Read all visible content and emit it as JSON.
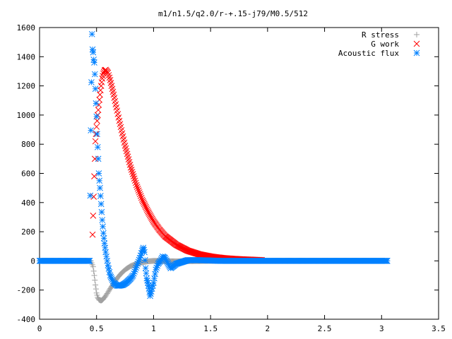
{
  "chart_data": {
    "type": "scatter",
    "title": "m1/n1.5/q2.0/r-+.15-j79/M0.5/512",
    "xlabel": "",
    "ylabel": "",
    "xlim": [
      0,
      3.5
    ],
    "ylim": [
      -400,
      1600
    ],
    "xticks": [
      0,
      0.5,
      1,
      1.5,
      2,
      2.5,
      3,
      3.5
    ],
    "xtick_labels": [
      "0",
      "0.5",
      "1",
      "1.5",
      "2",
      "2.5",
      "3",
      "3.5"
    ],
    "yticks": [
      -400,
      -200,
      0,
      200,
      400,
      600,
      800,
      1000,
      1200,
      1400,
      1600
    ],
    "ytick_labels": [
      "-400",
      "-200",
      "0",
      "200",
      "400",
      "600",
      "800",
      "1000",
      "1200",
      "1400",
      "1600"
    ],
    "grid": false,
    "legend_position": "top-right",
    "series": [
      {
        "name": "R stress",
        "marker": "plus",
        "color": "#a0a0a0",
        "x": [
          0.0,
          0.4,
          0.45,
          0.47,
          0.48,
          0.49,
          0.5,
          0.51,
          0.52,
          0.53,
          0.54,
          0.55,
          0.56,
          0.58,
          0.6,
          0.62,
          0.65,
          0.68,
          0.7,
          0.73,
          0.76,
          0.8,
          0.85,
          0.9,
          0.95,
          1.0,
          1.05,
          1.1,
          1.2,
          1.3,
          1.4,
          1.5,
          1.6,
          1.8,
          2.0,
          2.5,
          3.05
        ],
        "y": [
          0,
          0,
          0,
          -40,
          -100,
          -165,
          -220,
          -250,
          -265,
          -270,
          -272,
          -268,
          -260,
          -240,
          -215,
          -190,
          -155,
          -120,
          -100,
          -75,
          -55,
          -35,
          -20,
          -10,
          -3,
          0,
          0,
          -2,
          -3,
          -2,
          -1,
          0,
          0,
          0,
          0,
          0,
          0
        ]
      },
      {
        "name": "G work",
        "marker": "cross",
        "color": "#ff0000",
        "x": [
          0.465,
          0.47,
          0.475,
          0.48,
          0.485,
          0.49,
          0.5,
          0.51,
          0.52,
          0.53,
          0.54,
          0.55,
          0.56,
          0.57,
          0.58,
          0.6,
          0.62,
          0.65,
          0.68,
          0.7,
          0.75,
          0.8,
          0.85,
          0.9,
          0.95,
          1.0,
          1.05,
          1.1,
          1.2,
          1.3,
          1.4,
          1.5,
          1.6,
          1.7,
          1.8,
          1.9,
          1.95
        ],
        "y": [
          180,
          310,
          440,
          580,
          700,
          820,
          920,
          1000,
          1070,
          1140,
          1200,
          1250,
          1285,
          1305,
          1310,
          1290,
          1240,
          1140,
          1030,
          960,
          790,
          640,
          520,
          420,
          340,
          270,
          215,
          170,
          110,
          70,
          45,
          30,
          20,
          14,
          10,
          7,
          5
        ]
      },
      {
        "name": "Acoustic flux",
        "marker": "star",
        "color": "#0080ff",
        "x": [
          0.0,
          0.1,
          0.2,
          0.3,
          0.4,
          0.44,
          0.45,
          0.46,
          0.465,
          0.47,
          0.475,
          0.48,
          0.485,
          0.49,
          0.495,
          0.5,
          0.505,
          0.51,
          0.515,
          0.52,
          0.53,
          0.54,
          0.55,
          0.56,
          0.57,
          0.58,
          0.6,
          0.62,
          0.65,
          0.68,
          0.7,
          0.73,
          0.76,
          0.8,
          0.82,
          0.84,
          0.86,
          0.88,
          0.9,
          0.91,
          0.92,
          0.93,
          0.94,
          0.95,
          0.96,
          0.97,
          0.98,
          1.0,
          1.02,
          1.04,
          1.06,
          1.08,
          1.1,
          1.15,
          1.2,
          1.3,
          1.4,
          1.6,
          1.8,
          2.0,
          2.5,
          3.05
        ],
        "y": [
          0,
          0,
          0,
          0,
          0,
          0,
          895,
          1555,
          1450,
          1430,
          1380,
          1360,
          1280,
          1180,
          1080,
          990,
          870,
          780,
          700,
          600,
          500,
          390,
          280,
          190,
          120,
          60,
          -30,
          -100,
          -150,
          -170,
          -170,
          -165,
          -150,
          -120,
          -100,
          -60,
          -20,
          20,
          70,
          90,
          60,
          -50,
          -120,
          -150,
          -190,
          -240,
          -210,
          -150,
          -60,
          -20,
          0,
          30,
          20,
          -50,
          -20,
          5,
          5,
          0,
          0,
          0,
          0,
          0
        ]
      }
    ]
  }
}
